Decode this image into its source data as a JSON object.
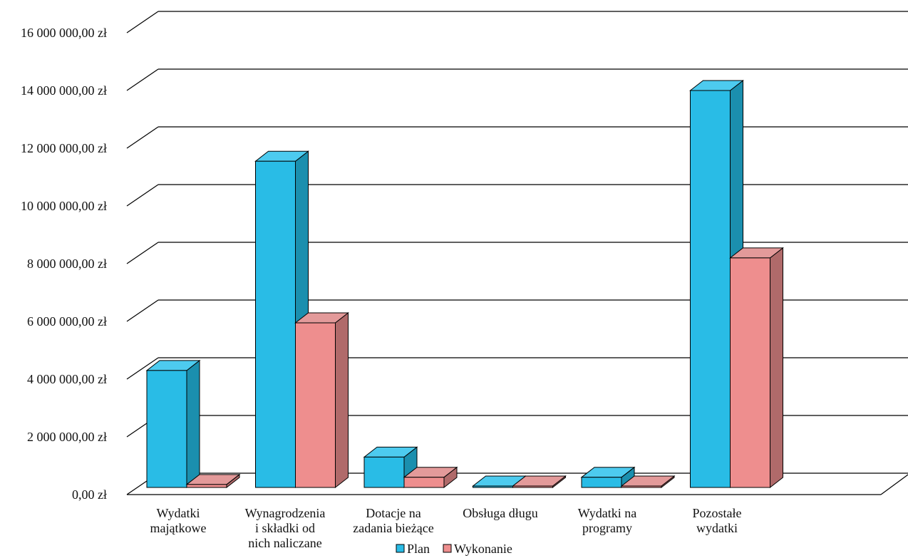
{
  "chart_data": {
    "type": "bar",
    "style": "3d-clustered-column",
    "categories": [
      [
        "Wydatki",
        "majątkowe"
      ],
      [
        "Wynagrodzenia",
        "i składki od",
        "nich naliczane"
      ],
      [
        "Dotacje na",
        "zadania bieżące"
      ],
      [
        "Obsługa długu"
      ],
      [
        "Wydatki na",
        "programy"
      ],
      [
        "Pozostałe",
        "wydatki"
      ]
    ],
    "series": [
      {
        "name": "Plan",
        "values": [
          4300000,
          11550000,
          1300000,
          100000,
          600000,
          14000000
        ],
        "color": "#29BCE6",
        "side_color": "#1B8FAE",
        "top_color": "#4DCBEF"
      },
      {
        "name": "Wykonanie",
        "values": [
          350000,
          5950000,
          600000,
          30000,
          20000,
          8200000
        ],
        "color": "#EE8E8E",
        "side_color": "#B06A6A",
        "top_color": "#E39A9A"
      }
    ],
    "ylim": [
      0,
      16000000
    ],
    "y_ticks": [
      {
        "value": 0,
        "label": "0,00 zł"
      },
      {
        "value": 2000000,
        "label": "2 000 000,00 zł"
      },
      {
        "value": 4000000,
        "label": "4 000 000,00 zł"
      },
      {
        "value": 6000000,
        "label": "6 000 000,00 zł"
      },
      {
        "value": 8000000,
        "label": "8 000 000,00 zł"
      },
      {
        "value": 10000000,
        "label": "10 000 000,00 zł"
      },
      {
        "value": 12000000,
        "label": "12 000 000,00 zł"
      },
      {
        "value": 14000000,
        "label": "14 000 000,00 zł"
      },
      {
        "value": 16000000,
        "label": "16 000 000,00 zł"
      }
    ],
    "grid": true,
    "legend": {
      "position": "bottom",
      "entries": [
        "Plan",
        "Wykonanie"
      ]
    }
  }
}
